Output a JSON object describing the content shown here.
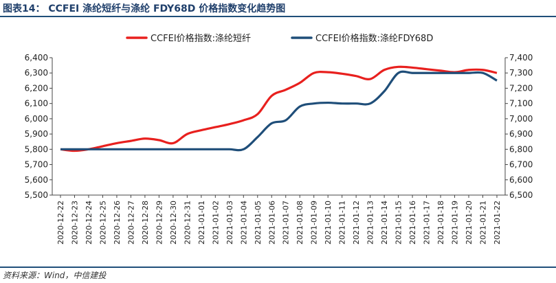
{
  "title": "图表14： CCFEI 涤纶短纤与涤纶 FDY68D 价格指数变化趋势图",
  "source": "资料来源：Wind，中信建投",
  "chart_data": {
    "type": "line",
    "title": "CCFEI 涤纶短纤与涤纶 FDY68D 价格指数变化趋势图",
    "legend_position": "top",
    "categories": [
      "2020-12-22",
      "2020-12-23",
      "2020-12-24",
      "2020-12-25",
      "2020-12-26",
      "2020-12-27",
      "2020-12-28",
      "2020-12-29",
      "2020-12-30",
      "2020-12-31",
      "2021-01-01",
      "2021-01-02",
      "2021-01-03",
      "2021-01-04",
      "2021-01-05",
      "2021-01-06",
      "2021-01-07",
      "2021-01-08",
      "2021-01-09",
      "2021-01-10",
      "2021-01-11",
      "2021-01-12",
      "2021-01-13",
      "2021-01-14",
      "2021-01-15",
      "2021-01-16",
      "2021-01-17",
      "2021-01-18",
      "2021-01-19",
      "2021-01-20",
      "2021-01-21",
      "2021-01-22"
    ],
    "left_axis": {
      "ylim": [
        5500,
        6400
      ],
      "ticks": [
        "5,500",
        "5,600",
        "5,700",
        "5,800",
        "5,900",
        "6,000",
        "6,100",
        "6,200",
        "6,300",
        "6,400"
      ]
    },
    "right_axis": {
      "ylim": [
        6500,
        7400
      ],
      "ticks": [
        "6,500",
        "6,600",
        "6,700",
        "6,800",
        "6,900",
        "7,000",
        "7,100",
        "7,200",
        "7,300",
        "7,400"
      ]
    },
    "series": [
      {
        "name": "CCFEI价格指数:涤纶短纤",
        "axis": "left",
        "color": "#e8201e",
        "values": [
          5800,
          5790,
          5800,
          5820,
          5840,
          5855,
          5870,
          5860,
          5840,
          5900,
          5925,
          5945,
          5965,
          5990,
          6030,
          6150,
          6190,
          6235,
          6300,
          6305,
          6295,
          6280,
          6260,
          6320,
          6340,
          6335,
          6325,
          6315,
          6305,
          6320,
          6320,
          6300
        ]
      },
      {
        "name": "CCFEI价格指数:涤纶FDY68D",
        "axis": "right",
        "color": "#1f4e79",
        "values": [
          6800,
          6800,
          6800,
          6800,
          6800,
          6800,
          6800,
          6800,
          6800,
          6800,
          6800,
          6800,
          6800,
          6800,
          6880,
          6970,
          6990,
          7080,
          7100,
          7105,
          7100,
          7100,
          7100,
          7180,
          7300,
          7300,
          7300,
          7300,
          7300,
          7300,
          7300,
          7250
        ]
      }
    ]
  }
}
